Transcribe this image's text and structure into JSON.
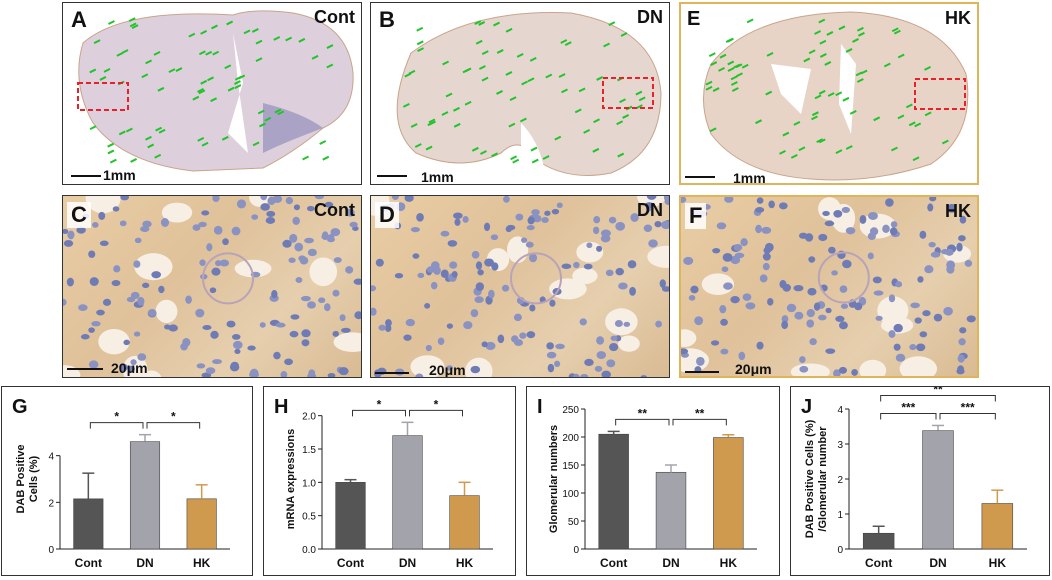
{
  "panels": {
    "A": {
      "letter": "A",
      "group": "Cont",
      "scale": "1mm"
    },
    "B": {
      "letter": "B",
      "group": "DN",
      "scale": "1mm"
    },
    "E": {
      "letter": "E",
      "group": "HK",
      "scale": "1mm"
    },
    "C": {
      "letter": "C",
      "group": "Cont",
      "scale": "20μm"
    },
    "D": {
      "letter": "D",
      "group": "DN",
      "scale": "20μm"
    },
    "F": {
      "letter": "F",
      "group": "HK",
      "scale": "20μm"
    }
  },
  "colors": {
    "Cont": "#555555",
    "DN": "#a3a3ab",
    "HK": "#d09a4e",
    "hk_border": "#e0b45a",
    "marker": "#21c42b",
    "roi": "#e8202a"
  },
  "chart_data": [
    {
      "type": "bar",
      "letter": "G",
      "ylabel": "DAB Positive\nCells (%)",
      "categories": [
        "Cont",
        "DN",
        "HK"
      ],
      "values": [
        2.15,
        4.6,
        2.15
      ],
      "errors": [
        1.1,
        0.3,
        0.6
      ],
      "ylim": [
        0,
        6
      ],
      "yticks": [
        "0",
        "2",
        "4"
      ],
      "ytick_values": [
        0,
        2,
        4
      ],
      "sig": [
        {
          "from": 0,
          "to": 1,
          "label": "*"
        },
        {
          "from": 1,
          "to": 2,
          "label": "*"
        }
      ]
    },
    {
      "type": "bar",
      "letter": "H",
      "ylabel": "mRNA expressions",
      "categories": [
        "Cont",
        "DN",
        "HK"
      ],
      "values": [
        1.0,
        1.7,
        0.8
      ],
      "errors": [
        0.04,
        0.2,
        0.2
      ],
      "ylim": [
        0,
        2.1
      ],
      "yticks": [
        "0.0",
        "0.5",
        "1.0",
        "1.5",
        "2.0"
      ],
      "ytick_values": [
        0,
        0.5,
        1.0,
        1.5,
        2.0
      ],
      "sig": [
        {
          "from": 0,
          "to": 1,
          "label": "*"
        },
        {
          "from": 1,
          "to": 2,
          "label": "*"
        }
      ]
    },
    {
      "type": "bar",
      "letter": "I",
      "ylabel": "Glomerular numbers",
      "categories": [
        "Cont",
        "DN",
        "HK"
      ],
      "values": [
        205,
        137,
        199
      ],
      "errors": [
        5,
        13,
        5
      ],
      "ylim": [
        0,
        250
      ],
      "yticks": [
        "0",
        "50",
        "100",
        "150",
        "200",
        "250"
      ],
      "ytick_values": [
        0,
        50,
        100,
        150,
        200,
        250
      ],
      "sig": [
        {
          "from": 0,
          "to": 1,
          "label": "**"
        },
        {
          "from": 1,
          "to": 2,
          "label": "**"
        }
      ]
    },
    {
      "type": "bar",
      "letter": "J",
      "ylabel": "DAB Positive Cells (%)\n/Glomerular number",
      "categories": [
        "Cont",
        "DN",
        "HK"
      ],
      "values": [
        0.45,
        3.38,
        1.3
      ],
      "errors": [
        0.2,
        0.15,
        0.38
      ],
      "ylim": [
        0,
        4
      ],
      "yticks": [
        "0",
        "1",
        "2",
        "3",
        "4"
      ],
      "ytick_values": [
        0,
        1,
        2,
        3,
        4
      ],
      "sig": [
        {
          "from": 0,
          "to": 1,
          "label": "***"
        },
        {
          "from": 1,
          "to": 2,
          "label": "***"
        },
        {
          "from": 0,
          "to": 2,
          "label": "**"
        }
      ]
    }
  ]
}
